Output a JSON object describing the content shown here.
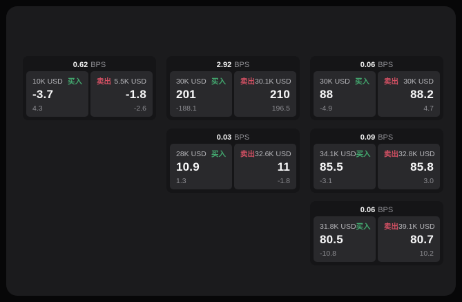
{
  "labels": {
    "bps_unit": "BPS",
    "buy": "买入",
    "sell": "卖出"
  },
  "colors": {
    "buy": "#43a86f",
    "sell": "#d25063",
    "panel_bg": "#1b1b1d",
    "card_bg": "#151517",
    "pane_bg": "#29292c"
  },
  "cards": [
    {
      "bps": "0.62",
      "row": 1,
      "col": 1,
      "buy": {
        "amount": "10K USD",
        "value": "-3.7",
        "delta": "4.3"
      },
      "sell": {
        "amount": "5.5K USD",
        "value": "-1.8",
        "delta": "-2.6"
      }
    },
    {
      "bps": "2.92",
      "row": 1,
      "col": 2,
      "buy": {
        "amount": "30K USD",
        "value": "201",
        "delta": "-188.1"
      },
      "sell": {
        "amount": "30.1K USD",
        "value": "210",
        "delta": "196.5"
      }
    },
    {
      "bps": "0.06",
      "row": 1,
      "col": 3,
      "buy": {
        "amount": "30K USD",
        "value": "88",
        "delta": "-4.9"
      },
      "sell": {
        "amount": "30K USD",
        "value": "88.2",
        "delta": "4.7"
      }
    },
    {
      "bps": "0.03",
      "row": 2,
      "col": 2,
      "buy": {
        "amount": "28K USD",
        "value": "10.9",
        "delta": "1.3"
      },
      "sell": {
        "amount": "32.6K USD",
        "value": "11",
        "delta": "-1.8"
      }
    },
    {
      "bps": "0.09",
      "row": 2,
      "col": 3,
      "buy": {
        "amount": "34.1K USD",
        "value": "85.5",
        "delta": "-3.1"
      },
      "sell": {
        "amount": "32.8K USD",
        "value": "85.8",
        "delta": "3.0"
      }
    },
    {
      "bps": "0.06",
      "row": 3,
      "col": 3,
      "buy": {
        "amount": "31.8K USD",
        "value": "80.5",
        "delta": "-10.8"
      },
      "sell": {
        "amount": "39.1K USD",
        "value": "80.7",
        "delta": "10.2"
      }
    }
  ]
}
